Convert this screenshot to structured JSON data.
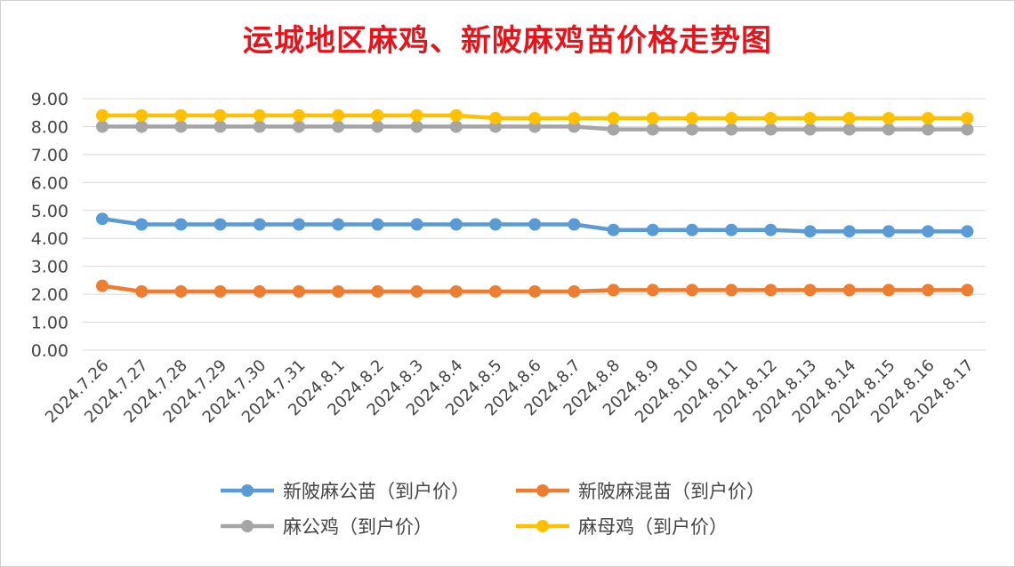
{
  "chart_data": {
    "type": "line",
    "title": "运城地区麻鸡、新陂麻鸡苗价格走势图",
    "xlabel": "",
    "ylabel": "",
    "ylim": [
      0,
      9
    ],
    "yticks": [
      "0.00",
      "1.00",
      "2.00",
      "3.00",
      "4.00",
      "5.00",
      "6.00",
      "7.00",
      "8.00",
      "9.00"
    ],
    "grid": true,
    "legend_position": "bottom",
    "x": [
      "2024.7.26",
      "2024.7.27",
      "2024.7.28",
      "2024.7.29",
      "2024.7.30",
      "2024.7.31",
      "2024.8.1",
      "2024.8.2",
      "2024.8.3",
      "2024.8.4",
      "2024.8.5",
      "2024.8.6",
      "2024.8.7",
      "2024.8.8",
      "2024.8.9",
      "2024.8.10",
      "2024.8.11",
      "2024.8.12",
      "2024.8.13",
      "2024.8.14",
      "2024.8.15",
      "2024.8.16",
      "2024.8.17"
    ],
    "series": [
      {
        "name": "新陂麻公苗（到户价）",
        "color": "#5b9bd5",
        "values": [
          4.7,
          4.5,
          4.5,
          4.5,
          4.5,
          4.5,
          4.5,
          4.5,
          4.5,
          4.5,
          4.5,
          4.5,
          4.5,
          4.3,
          4.3,
          4.3,
          4.3,
          4.3,
          4.25,
          4.25,
          4.25,
          4.25,
          4.25
        ]
      },
      {
        "name": "新陂麻混苗（到户价）",
        "color": "#ed7d31",
        "values": [
          2.3,
          2.1,
          2.1,
          2.1,
          2.1,
          2.1,
          2.1,
          2.1,
          2.1,
          2.1,
          2.1,
          2.1,
          2.1,
          2.15,
          2.15,
          2.15,
          2.15,
          2.15,
          2.15,
          2.15,
          2.15,
          2.15,
          2.15
        ]
      },
      {
        "name": "麻公鸡（到户价）",
        "color": "#a5a5a5",
        "values": [
          8.0,
          8.0,
          8.0,
          8.0,
          8.0,
          8.0,
          8.0,
          8.0,
          8.0,
          8.0,
          8.0,
          8.0,
          8.0,
          7.9,
          7.9,
          7.9,
          7.9,
          7.9,
          7.9,
          7.9,
          7.9,
          7.9,
          7.9
        ]
      },
      {
        "name": "麻母鸡（到户价）",
        "color": "#ffc000",
        "values": [
          8.4,
          8.4,
          8.4,
          8.4,
          8.4,
          8.4,
          8.4,
          8.4,
          8.4,
          8.4,
          8.3,
          8.3,
          8.3,
          8.3,
          8.3,
          8.3,
          8.3,
          8.3,
          8.3,
          8.3,
          8.3,
          8.3,
          8.3
        ]
      }
    ]
  }
}
